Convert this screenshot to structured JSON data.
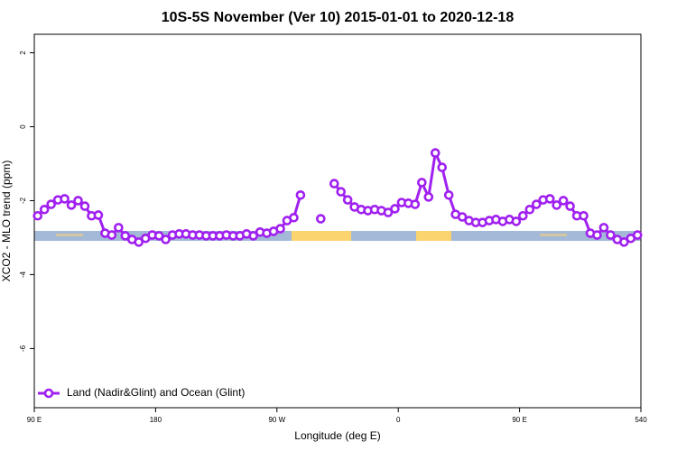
{
  "chart_data": {
    "type": "line",
    "title": "10S-5S November (Ver 10)   2015-01-01 to 2020-12-18",
    "xlabel": "Longitude (deg E)",
    "ylabel": "XCO2 - MLO trend (ppm)",
    "x": [
      92.5,
      97.5,
      102.5,
      107.5,
      112.5,
      117.5,
      122.5,
      127.5,
      132.5,
      137.5,
      142.5,
      147.5,
      152.5,
      157.5,
      162.5,
      167.5,
      172.5,
      177.5,
      182.5,
      187.5,
      192.5,
      197.5,
      202.5,
      207.5,
      212.5,
      217.5,
      222.5,
      227.5,
      232.5,
      237.5,
      242.5,
      247.5,
      252.5,
      257.5,
      262.5,
      267.5,
      272.5,
      277.5,
      282.5,
      287.5,
      292.5,
      297.5,
      302.5,
      307.5,
      312.5,
      317.5,
      322.5,
      327.5,
      332.5,
      337.5,
      342.5,
      347.5,
      352.5,
      357.5,
      362.5,
      367.5,
      372.5,
      377.5,
      382.5,
      387.5,
      392.5,
      397.5,
      402.5,
      407.5,
      412.5,
      417.5,
      422.5,
      427.5,
      432.5,
      437.5,
      442.5,
      447.5,
      452.5,
      457.5,
      462.5,
      467.5,
      472.5,
      477.5,
      482.5,
      487.5,
      492.5,
      497.5,
      502.5,
      507.5,
      512.5,
      517.5,
      522.5,
      527.5,
      532.5,
      537.5
    ],
    "series": [
      {
        "name": "Land (Nadir&Glint) and Ocean (Glint)",
        "color": "#a020f0",
        "values": [
          -2.41,
          -2.24,
          -2.1,
          -1.98,
          -1.95,
          -2.12,
          -2.0,
          -2.15,
          -2.41,
          -2.39,
          -2.88,
          -2.93,
          -2.73,
          -2.95,
          -3.05,
          -3.12,
          -3.02,
          -2.93,
          -2.95,
          -3.05,
          -2.93,
          -2.9,
          -2.9,
          -2.93,
          -2.93,
          -2.95,
          -2.95,
          -2.95,
          -2.93,
          -2.95,
          -2.95,
          -2.9,
          -2.95,
          -2.85,
          -2.88,
          -2.83,
          -2.76,
          -2.54,
          -2.46,
          -1.85,
          null,
          null,
          -2.49,
          null,
          -1.54,
          -1.76,
          -1.98,
          -2.17,
          -2.24,
          -2.27,
          -2.24,
          -2.27,
          -2.32,
          -2.22,
          -2.05,
          -2.07,
          -2.1,
          -1.51,
          -1.9,
          -0.71,
          -1.1,
          -1.85,
          -2.37,
          -2.44,
          -2.54,
          -2.59,
          -2.59,
          -2.54,
          -2.51,
          -2.56,
          -2.51,
          -2.56,
          -2.41,
          -2.24,
          -2.1,
          -1.98,
          -1.95,
          -2.12,
          -2.0,
          -2.15,
          -2.41,
          -2.41,
          -2.88,
          -2.93,
          -2.73,
          -2.93,
          -3.05,
          -3.12,
          -3.02,
          -2.93
        ]
      }
    ],
    "xlim": [
      90,
      540
    ],
    "xticks": [
      {
        "value": 90,
        "label": "90 E"
      },
      180,
      {
        "value": 270,
        "label": "90 W"
      },
      {
        "value": 360,
        "label": "0"
      },
      {
        "value": 450,
        "label": "90 E"
      },
      540
    ],
    "ylim": [
      -7.6,
      2.5
    ],
    "yticks": [
      2,
      0,
      -2,
      -4,
      -6
    ],
    "legend": "bottom-left"
  }
}
